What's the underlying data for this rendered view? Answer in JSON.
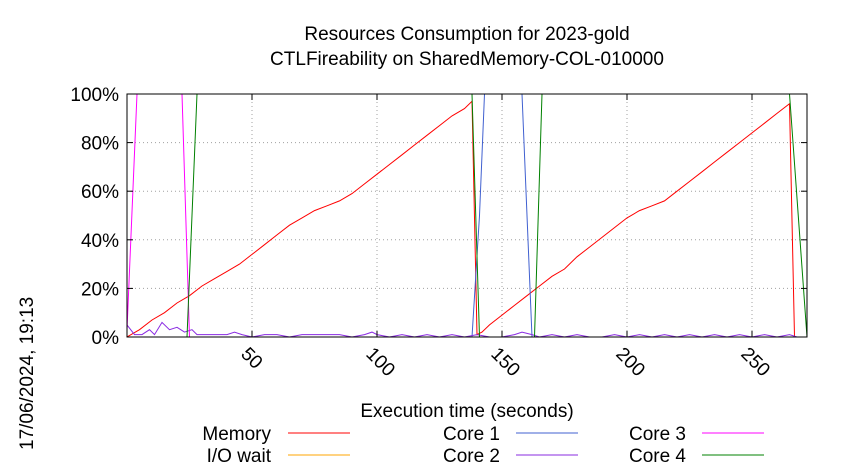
{
  "chart_data": {
    "type": "line",
    "title": "Resources Consumption for 2023-gold",
    "subtitle": "CTLFireability on SharedMemory-COL-010000",
    "xlabel": "Execution time (seconds)",
    "ylabel": "",
    "xlim": [
      0,
      272
    ],
    "ylim": [
      0,
      100
    ],
    "x_ticks": [
      50,
      100,
      150,
      200,
      250
    ],
    "y_ticks": [
      0,
      20,
      40,
      60,
      80,
      100
    ],
    "y_tick_labels": [
      "0%",
      "20%",
      "40%",
      "60%",
      "80%",
      "100%"
    ],
    "grid": true,
    "timestamp": "17/06/2024, 19:13",
    "legend_position": "bottom",
    "series": [
      {
        "name": "Memory",
        "color": "#ff0000",
        "points": [
          [
            0,
            0
          ],
          [
            5,
            3
          ],
          [
            10,
            7
          ],
          [
            15,
            10
          ],
          [
            20,
            14
          ],
          [
            25,
            17
          ],
          [
            30,
            21
          ],
          [
            35,
            24
          ],
          [
            40,
            27
          ],
          [
            45,
            30
          ],
          [
            50,
            34
          ],
          [
            55,
            38
          ],
          [
            60,
            42
          ],
          [
            65,
            46
          ],
          [
            70,
            49
          ],
          [
            75,
            52
          ],
          [
            80,
            54
          ],
          [
            85,
            56
          ],
          [
            90,
            59
          ],
          [
            95,
            63
          ],
          [
            100,
            67
          ],
          [
            105,
            71
          ],
          [
            110,
            75
          ],
          [
            115,
            79
          ],
          [
            120,
            83
          ],
          [
            125,
            87
          ],
          [
            130,
            91
          ],
          [
            135,
            94
          ],
          [
            138,
            97
          ],
          [
            140,
            1
          ],
          [
            142,
            2
          ],
          [
            145,
            5
          ],
          [
            150,
            9
          ],
          [
            155,
            13
          ],
          [
            160,
            17
          ],
          [
            165,
            21
          ],
          [
            170,
            25
          ],
          [
            175,
            28
          ],
          [
            180,
            33
          ],
          [
            185,
            37
          ],
          [
            190,
            41
          ],
          [
            195,
            45
          ],
          [
            200,
            49
          ],
          [
            205,
            52
          ],
          [
            210,
            54
          ],
          [
            215,
            56
          ],
          [
            220,
            60
          ],
          [
            225,
            64
          ],
          [
            230,
            68
          ],
          [
            235,
            72
          ],
          [
            240,
            76
          ],
          [
            245,
            80
          ],
          [
            250,
            84
          ],
          [
            255,
            88
          ],
          [
            260,
            92
          ],
          [
            265,
            96
          ],
          [
            267,
            0
          ],
          [
            272,
            0
          ]
        ]
      },
      {
        "name": "I/O wait",
        "color": "#ffa500",
        "points": [
          [
            0,
            0
          ],
          [
            272,
            0
          ]
        ]
      },
      {
        "name": "Core 1",
        "color": "#4060d0",
        "points": [
          [
            0,
            0
          ],
          [
            138,
            0
          ],
          [
            141,
            50
          ],
          [
            143,
            100
          ],
          [
            158,
            100
          ],
          [
            162,
            0
          ],
          [
            272,
            0
          ]
        ]
      },
      {
        "name": "Core 2",
        "color": "#8a2be2",
        "points": [
          [
            0,
            5
          ],
          [
            3,
            1
          ],
          [
            6,
            1
          ],
          [
            9,
            3
          ],
          [
            11,
            1
          ],
          [
            14,
            6
          ],
          [
            17,
            3
          ],
          [
            20,
            4
          ],
          [
            23,
            2
          ],
          [
            26,
            3
          ],
          [
            28,
            1
          ],
          [
            32,
            1
          ],
          [
            35,
            1
          ],
          [
            40,
            1
          ],
          [
            43,
            2
          ],
          [
            46,
            1
          ],
          [
            50,
            0
          ],
          [
            55,
            1
          ],
          [
            60,
            1
          ],
          [
            65,
            0
          ],
          [
            70,
            1
          ],
          [
            75,
            1
          ],
          [
            80,
            1
          ],
          [
            85,
            1
          ],
          [
            90,
            0
          ],
          [
            95,
            1
          ],
          [
            98,
            2
          ],
          [
            100,
            1
          ],
          [
            105,
            0
          ],
          [
            110,
            1
          ],
          [
            115,
            0
          ],
          [
            120,
            1
          ],
          [
            125,
            0
          ],
          [
            130,
            1
          ],
          [
            135,
            0
          ],
          [
            140,
            1
          ],
          [
            145,
            0
          ],
          [
            150,
            0
          ],
          [
            155,
            1
          ],
          [
            158,
            2
          ],
          [
            162,
            1
          ],
          [
            165,
            0
          ],
          [
            170,
            1
          ],
          [
            175,
            0
          ],
          [
            180,
            1
          ],
          [
            185,
            0
          ],
          [
            190,
            0
          ],
          [
            195,
            1
          ],
          [
            200,
            0
          ],
          [
            205,
            1
          ],
          [
            210,
            0
          ],
          [
            215,
            1
          ],
          [
            220,
            0
          ],
          [
            225,
            1
          ],
          [
            230,
            0
          ],
          [
            235,
            1
          ],
          [
            240,
            0
          ],
          [
            245,
            1
          ],
          [
            250,
            0
          ],
          [
            255,
            1
          ],
          [
            260,
            0
          ],
          [
            265,
            1
          ],
          [
            268,
            0
          ],
          [
            272,
            0
          ]
        ]
      },
      {
        "name": "Core 3",
        "color": "#ff00ff",
        "points": [
          [
            0,
            3
          ],
          [
            4,
            100
          ],
          [
            22,
            100
          ],
          [
            25,
            0
          ],
          [
            272,
            0
          ]
        ]
      },
      {
        "name": "Core 4",
        "color": "#008000",
        "points": [
          [
            0,
            0
          ],
          [
            24,
            0
          ],
          [
            28,
            100
          ],
          [
            138,
            100
          ],
          [
            141,
            0
          ],
          [
            163,
            0
          ],
          [
            166,
            100
          ],
          [
            265,
            100
          ],
          [
            272,
            0
          ]
        ]
      }
    ]
  }
}
